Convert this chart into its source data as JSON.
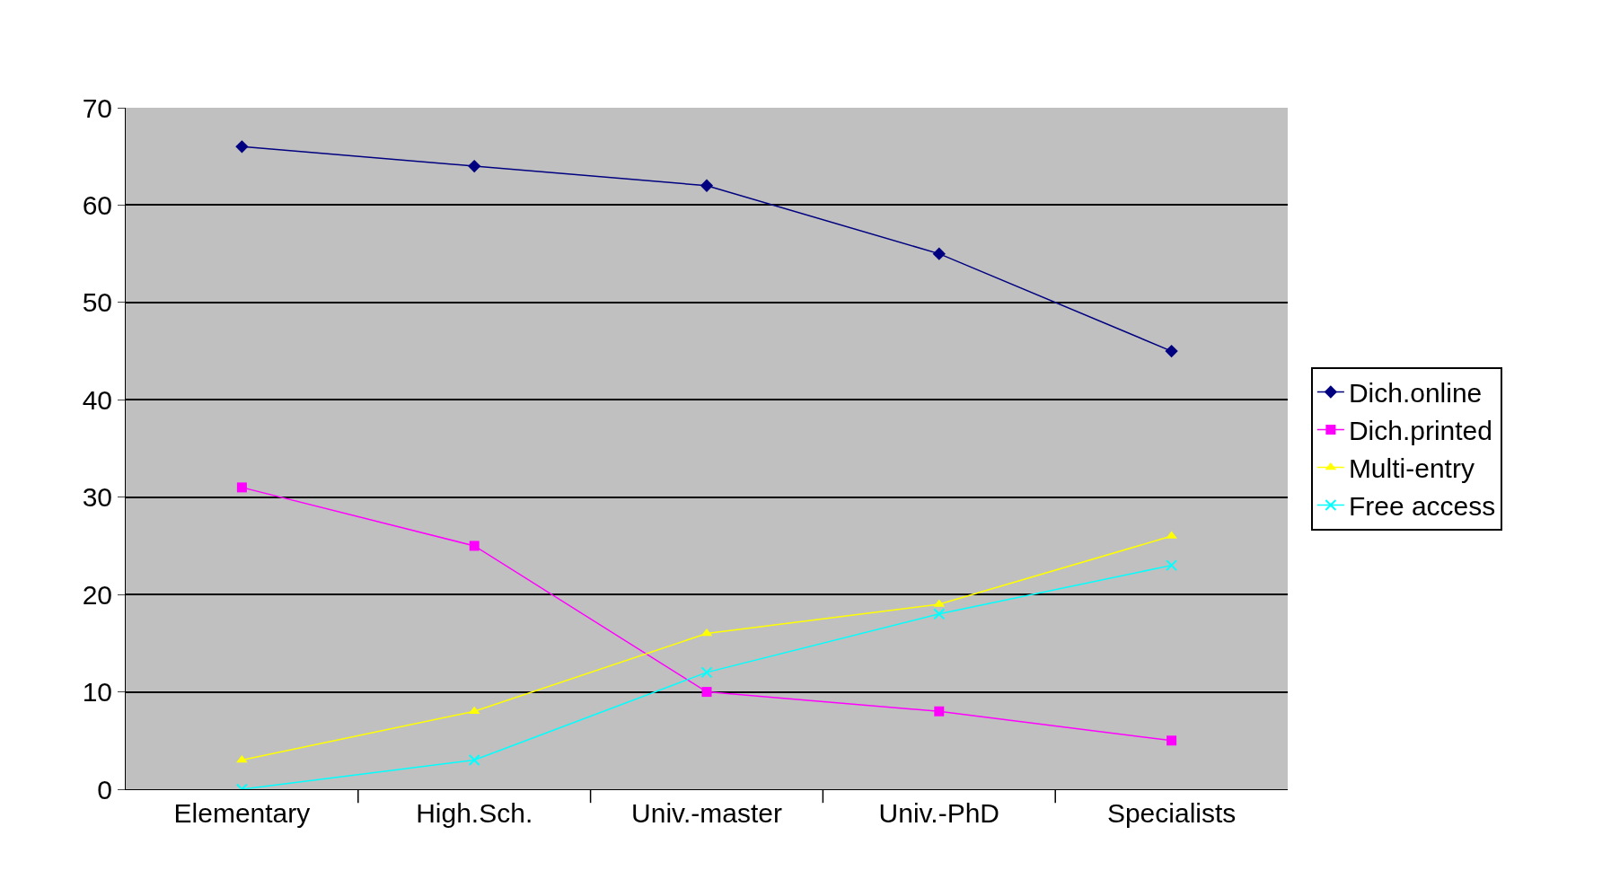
{
  "chart_data": {
    "type": "line",
    "categories": [
      "Elementary",
      "High.Sch.",
      "Univ.-master",
      "Univ.-PhD",
      "Specialists"
    ],
    "series": [
      {
        "name": "Dich.online",
        "color": "#000080",
        "marker": "diamond",
        "values": [
          66,
          64,
          62,
          55,
          45
        ]
      },
      {
        "name": "Dich.printed",
        "color": "#ff00ff",
        "marker": "square",
        "values": [
          31,
          25,
          10,
          8,
          5
        ]
      },
      {
        "name": "Multi-entry",
        "color": "#ffff00",
        "marker": "triangle",
        "values": [
          3,
          8,
          16,
          19,
          26
        ]
      },
      {
        "name": "Free access",
        "color": "#00ffff",
        "marker": "cross",
        "values": [
          0,
          3,
          12,
          18,
          23
        ]
      }
    ],
    "ylim": [
      0,
      70
    ],
    "yticks": [
      0,
      10,
      20,
      30,
      40,
      50,
      60,
      70
    ],
    "grid": "y",
    "legend": "right",
    "line_style": "solid"
  }
}
